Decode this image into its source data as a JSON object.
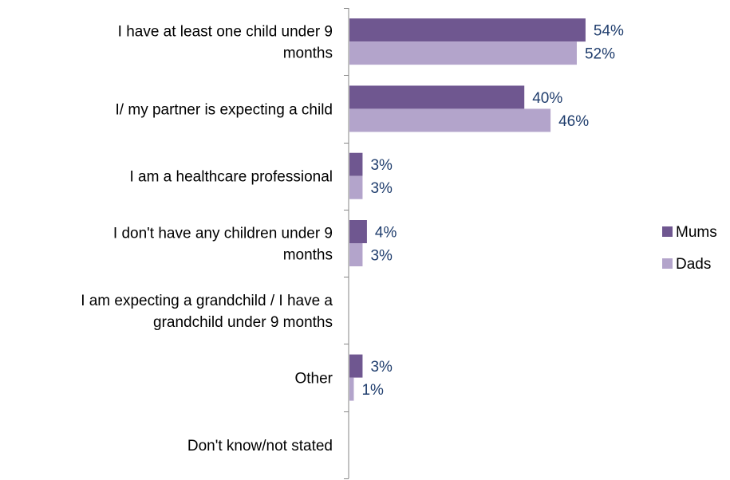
{
  "chart_data": {
    "type": "bar",
    "orientation": "horizontal",
    "categories": [
      [
        "I have at least one child under 9",
        "months"
      ],
      [
        "I/ my partner is expecting a child"
      ],
      [
        "I am a healthcare professional"
      ],
      [
        "I don't have any children under 9",
        "months"
      ],
      [
        "I am expecting a grandchild / I have a",
        "grandchild under 9 months"
      ],
      [
        "Other"
      ],
      [
        "Don't know/not stated"
      ]
    ],
    "series": [
      {
        "name": "Mums",
        "color": "#6f5790",
        "values": [
          54,
          40,
          3,
          4,
          null,
          3,
          null
        ],
        "labels": [
          "54%",
          "40%",
          "3%",
          "4%",
          "",
          "3%",
          ""
        ]
      },
      {
        "name": "Dads",
        "color": "#b3a4cb",
        "values": [
          52,
          46,
          3,
          3,
          null,
          1,
          null
        ],
        "labels": [
          "52%",
          "46%",
          "3%",
          "3%",
          "",
          "1%",
          ""
        ]
      }
    ],
    "xlim": [
      0,
      55
    ],
    "grid": false,
    "legend_position": "right"
  }
}
